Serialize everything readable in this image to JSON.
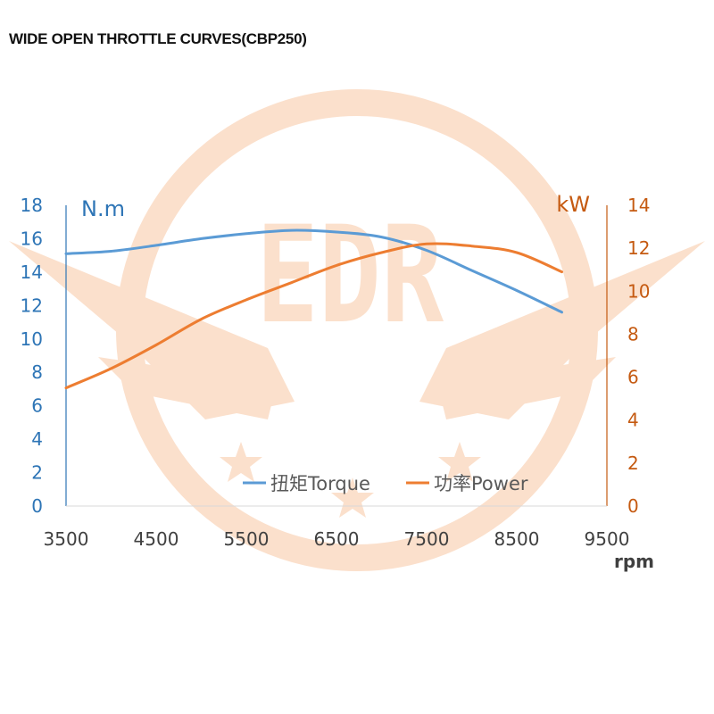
{
  "chart_data": {
    "type": "line",
    "title": "WIDE OPEN THROTTLE CURVES(CBP250)",
    "watermark": "EDR",
    "xlabel": "rpm",
    "ylabel_left": "N.m",
    "ylabel_right": "kW",
    "xlim": [
      3500,
      9500
    ],
    "ylim_left": [
      0,
      18
    ],
    "ylim_right": [
      0,
      14
    ],
    "x_ticks": [
      "3500",
      "4500",
      "5500",
      "6500",
      "7500",
      "8500",
      "9500"
    ],
    "y_left_ticks": [
      "0",
      "2",
      "4",
      "6",
      "8",
      "10",
      "12",
      "14",
      "16",
      "18"
    ],
    "y_right_ticks": [
      "0",
      "2",
      "4",
      "6",
      "8",
      "10",
      "12",
      "14"
    ],
    "series": [
      {
        "name": "扭矩Torque",
        "axis": "left",
        "color": "#5b9bd5",
        "x": [
          3500,
          4000,
          4500,
          5000,
          5500,
          6000,
          6500,
          7000,
          7500,
          8000,
          8500,
          9000
        ],
        "values": [
          15.1,
          15.25,
          15.6,
          16.0,
          16.3,
          16.5,
          16.4,
          16.1,
          15.3,
          14.1,
          12.9,
          11.6
        ]
      },
      {
        "name": "功率Power",
        "axis": "right",
        "color": "#ed7d31",
        "x": [
          3500,
          4000,
          4500,
          5000,
          5500,
          6000,
          6500,
          7000,
          7500,
          8000,
          8500,
          9000
        ],
        "values": [
          5.5,
          6.4,
          7.5,
          8.7,
          9.6,
          10.4,
          11.2,
          11.8,
          12.2,
          12.1,
          11.8,
          10.9
        ]
      }
    ],
    "colors": {
      "left_axis": "#2e75b6",
      "right_axis": "#c55a11",
      "x_tick": "#404040",
      "watermark": "#fbe0cc"
    }
  }
}
